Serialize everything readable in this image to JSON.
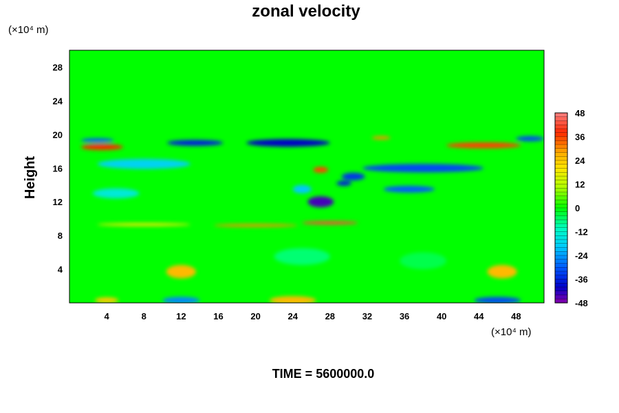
{
  "chart_data": {
    "type": "heatmap",
    "title": "zonal velocity",
    "ylabel": "Height",
    "x_unit": "(×10⁴ m)",
    "y_unit": "(×10⁴ m)",
    "footer": "TIME = 5600000.0",
    "xlim": [
      0,
      51
    ],
    "ylim": [
      0,
      30
    ],
    "x_ticks": [
      4,
      8,
      12,
      16,
      20,
      24,
      28,
      32,
      36,
      40,
      44,
      48
    ],
    "y_ticks": [
      4,
      8,
      12,
      16,
      20,
      24,
      28
    ],
    "colorbar": {
      "min": -48,
      "max": 48,
      "ticks": [
        48,
        36,
        24,
        12,
        0,
        -12,
        -24,
        -36,
        -48
      ]
    },
    "features": [
      {
        "x": 23.5,
        "y": 19.0,
        "w": 9.0,
        "h": 0.9,
        "value": -40
      },
      {
        "x": 13.5,
        "y": 19.0,
        "w": 6.0,
        "h": 0.7,
        "value": -36
      },
      {
        "x": 49.5,
        "y": 19.5,
        "w": 3.0,
        "h": 0.6,
        "value": -32
      },
      {
        "x": 3.0,
        "y": 19.3,
        "w": 3.5,
        "h": 0.5,
        "value": -30
      },
      {
        "x": 3.5,
        "y": 18.5,
        "w": 4.5,
        "h": 0.7,
        "value": 38
      },
      {
        "x": 44.5,
        "y": 18.7,
        "w": 8.0,
        "h": 0.7,
        "value": 36
      },
      {
        "x": 33.5,
        "y": 19.6,
        "w": 2.0,
        "h": 0.4,
        "value": 30
      },
      {
        "x": 38.0,
        "y": 16.0,
        "w": 13.0,
        "h": 1.0,
        "value": -32
      },
      {
        "x": 36.5,
        "y": 13.5,
        "w": 5.5,
        "h": 0.8,
        "value": -30
      },
      {
        "x": 30.5,
        "y": 15.0,
        "w": 2.5,
        "h": 0.9,
        "value": -34
      },
      {
        "x": 27.0,
        "y": 12.0,
        "w": 2.8,
        "h": 1.3,
        "value": -44
      },
      {
        "x": 29.5,
        "y": 14.2,
        "w": 1.6,
        "h": 0.6,
        "value": -36
      },
      {
        "x": 27.0,
        "y": 15.8,
        "w": 1.6,
        "h": 0.7,
        "value": 36
      },
      {
        "x": 25.0,
        "y": 13.5,
        "w": 2.0,
        "h": 1.0,
        "value": -20
      },
      {
        "x": 28.0,
        "y": 9.5,
        "w": 6.0,
        "h": 0.4,
        "value": 42
      },
      {
        "x": 20.0,
        "y": 9.2,
        "w": 9.0,
        "h": 0.35,
        "value": 30
      },
      {
        "x": 8.0,
        "y": 9.3,
        "w": 10.0,
        "h": 0.35,
        "value": 20
      },
      {
        "x": 8.0,
        "y": 16.5,
        "w": 10.0,
        "h": 1.2,
        "value": -18
      },
      {
        "x": 5.0,
        "y": 13.0,
        "w": 5.0,
        "h": 1.2,
        "value": -14
      },
      {
        "x": 12.0,
        "y": 3.7,
        "w": 3.2,
        "h": 1.6,
        "value": 26
      },
      {
        "x": 46.5,
        "y": 3.7,
        "w": 3.2,
        "h": 1.6,
        "value": 26
      },
      {
        "x": 24.0,
        "y": 0.3,
        "w": 5.0,
        "h": 1.0,
        "value": 26
      },
      {
        "x": 4.0,
        "y": 0.3,
        "w": 2.5,
        "h": 0.7,
        "value": 24
      },
      {
        "x": 12.0,
        "y": 0.3,
        "w": 4.0,
        "h": 0.8,
        "value": -26
      },
      {
        "x": 46.0,
        "y": 0.3,
        "w": 5.0,
        "h": 0.8,
        "value": -32
      },
      {
        "x": 25.0,
        "y": 5.5,
        "w": 6.0,
        "h": 2.0,
        "value": -6
      },
      {
        "x": 38.0,
        "y": 5.0,
        "w": 5.0,
        "h": 2.0,
        "value": -4
      }
    ]
  }
}
